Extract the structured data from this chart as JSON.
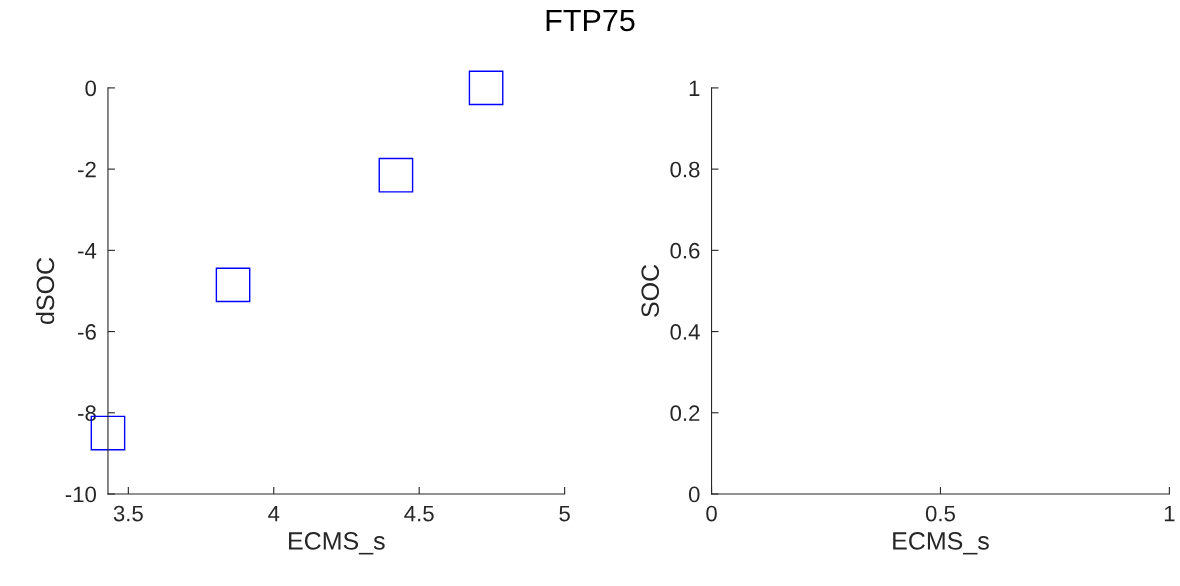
{
  "chart_data": [
    {
      "type": "scatter",
      "title": "FTP75",
      "xlabel": "ECMS_s",
      "ylabel": "dSOC",
      "x": [
        3.43,
        3.86,
        4.42,
        4.73
      ],
      "series": [
        {
          "color": "#0000ff",
          "values": [
            -8.5,
            -4.85,
            -2.15,
            0
          ]
        }
      ],
      "marker": "square",
      "xlim": [
        3.43,
        5
      ],
      "ylim": [
        -10,
        0
      ],
      "xticks": [
        3.5,
        4,
        4.5,
        5
      ],
      "yticks": [
        -10,
        -8,
        -6,
        -4,
        -2,
        0
      ],
      "grid": false,
      "legend": false
    },
    {
      "type": "scatter",
      "xlabel": "ECMS_s",
      "ylabel": "SOC",
      "xlim": [
        0,
        1
      ],
      "ylim": [
        0,
        1
      ],
      "xticks": [
        0,
        0.5,
        1
      ],
      "yticks": [
        0,
        0.2,
        0.4,
        0.6,
        0.8,
        1
      ],
      "grid": false,
      "legend": false
    }
  ]
}
